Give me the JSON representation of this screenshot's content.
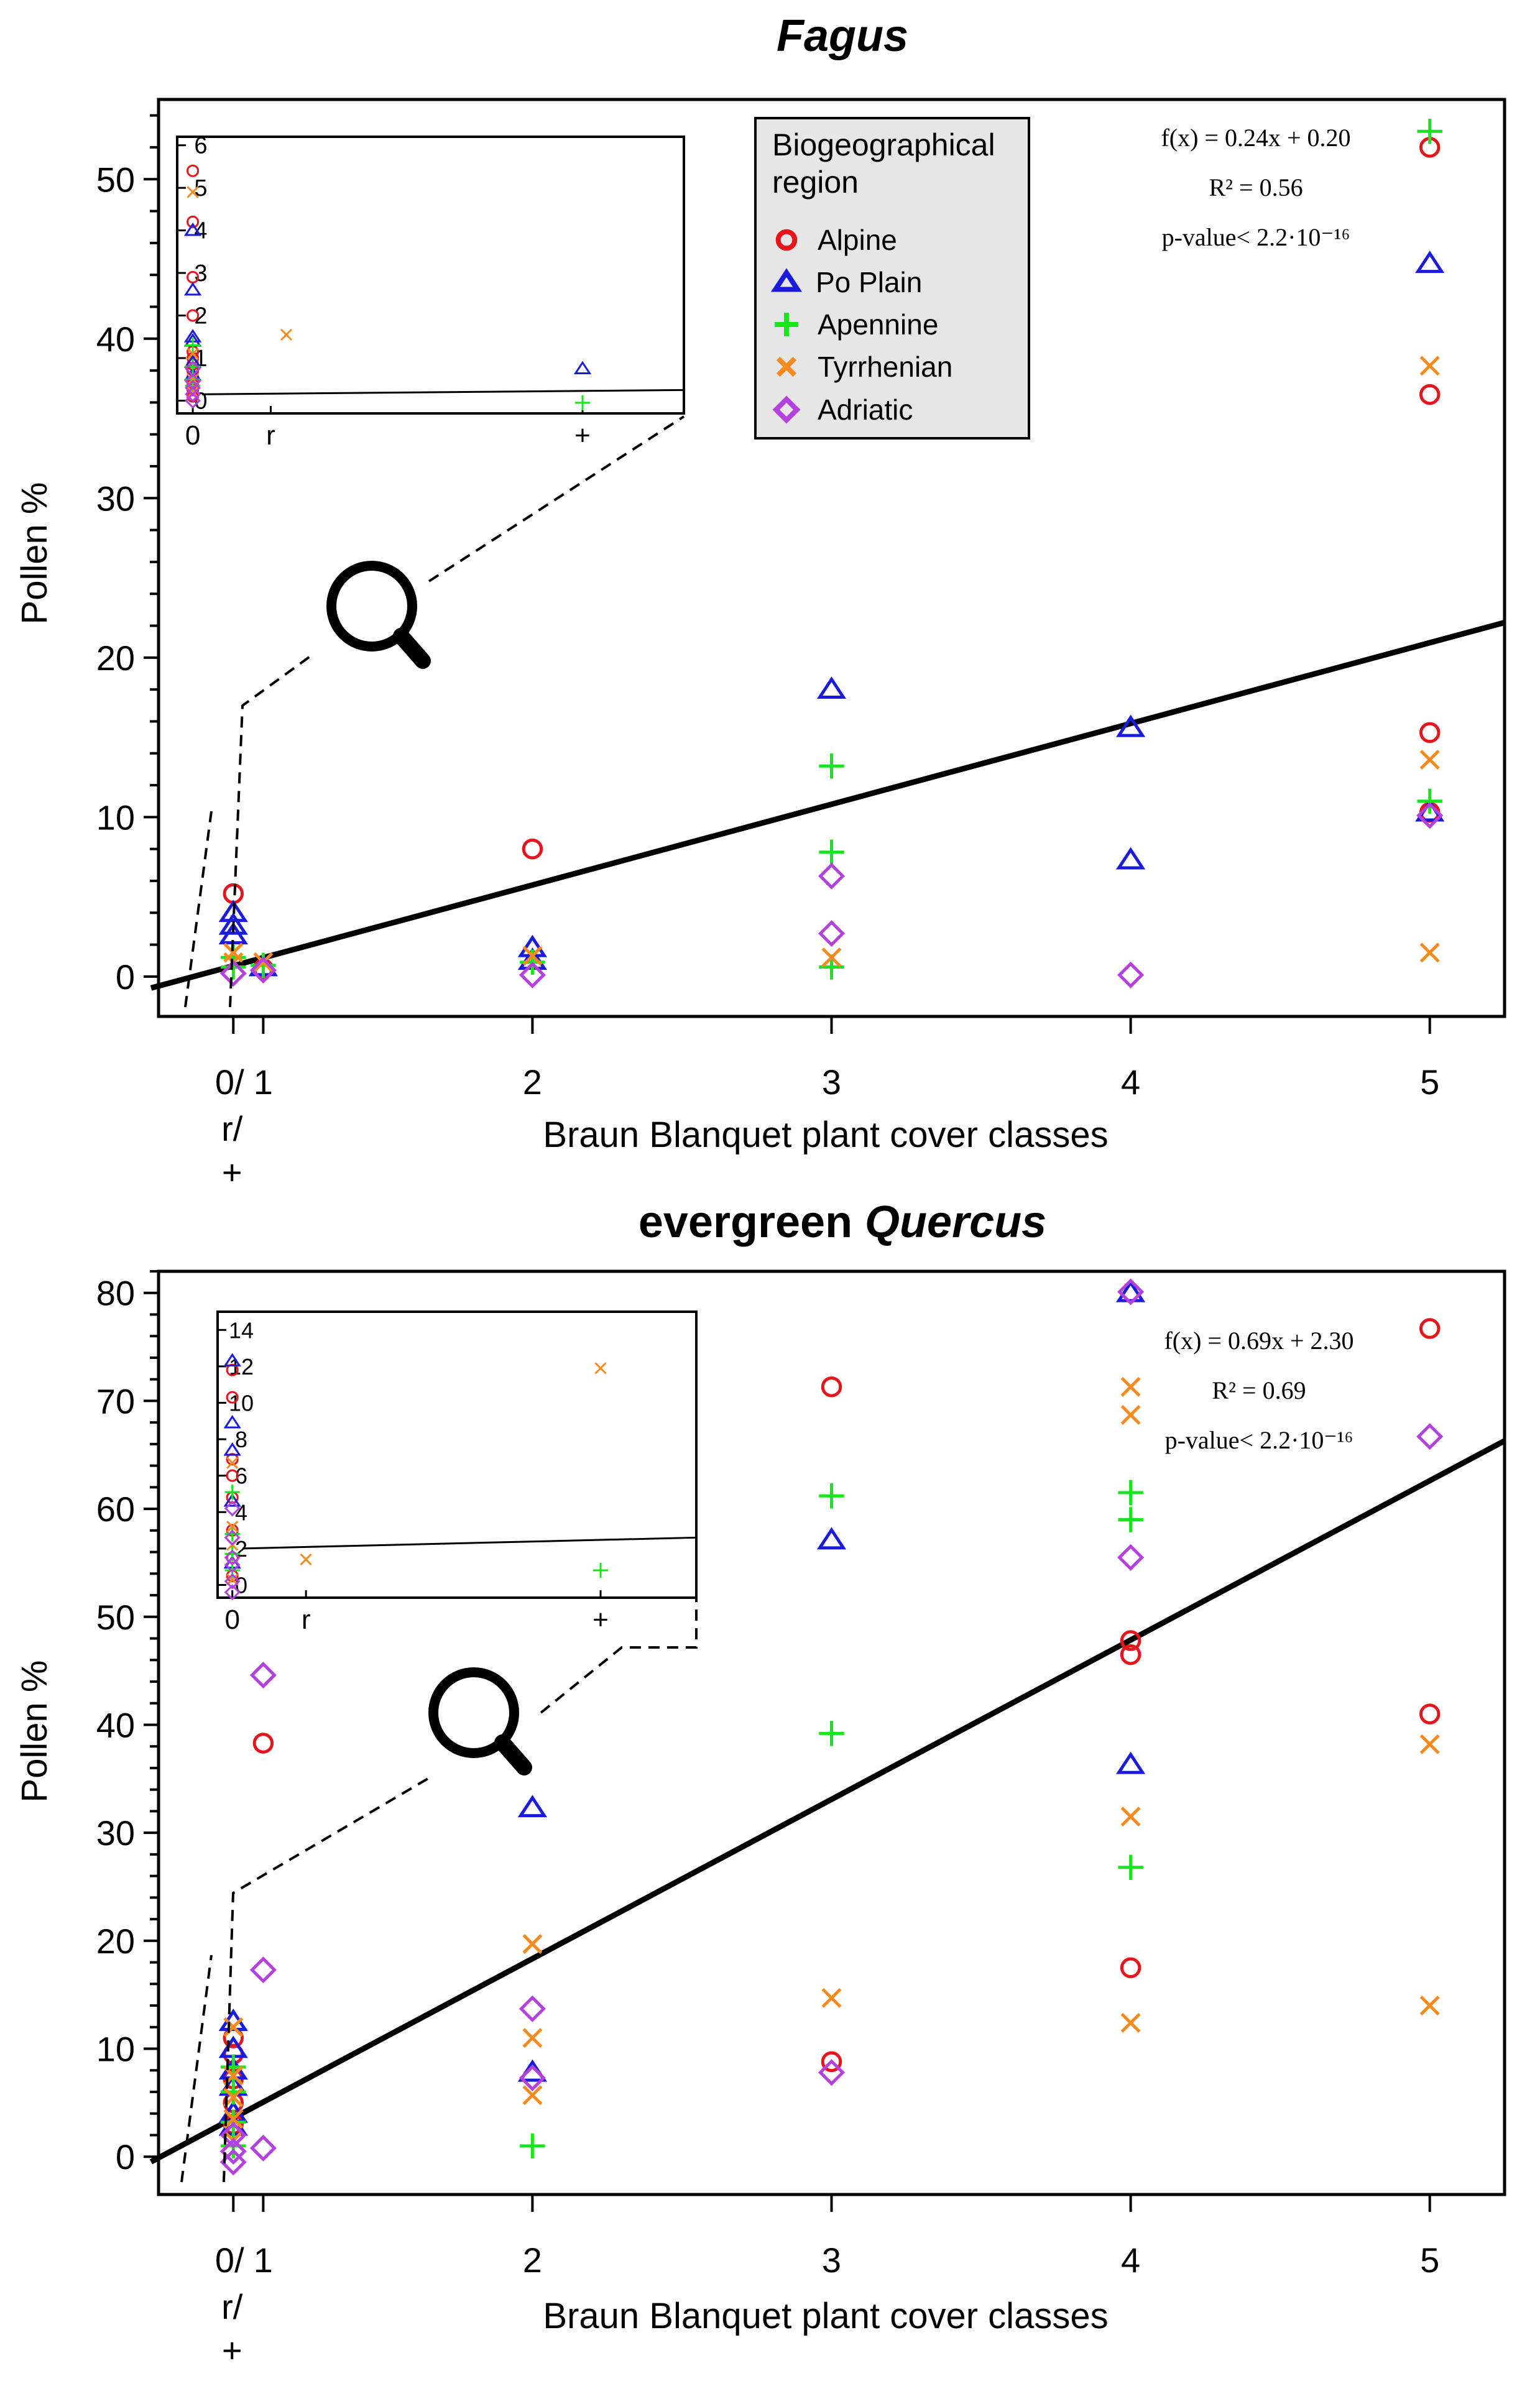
{
  "legend": {
    "title_line1": "Biogeographical",
    "title_line2": "region",
    "entries": [
      {
        "key": "alpine",
        "label": "Alpine",
        "marker": "circle",
        "color": "#e8141c"
      },
      {
        "key": "po",
        "label": "Po Plain",
        "marker": "triangle",
        "color": "#1a1adc"
      },
      {
        "key": "apennine",
        "label": "Apennine",
        "marker": "plus",
        "color": "#17e61c"
      },
      {
        "key": "tyrrhenian",
        "label": "Tyrrhenian",
        "marker": "cross",
        "color": "#f58a1f"
      },
      {
        "key": "adriatic",
        "label": "Adriatic",
        "marker": "diamond",
        "color": "#b440dd"
      }
    ],
    "background": "#e6e6e6"
  },
  "chart_data": [
    {
      "type": "scatter",
      "title": "Fagus",
      "title_prefix": "",
      "title_italic": "Fagus",
      "xlabel": "Braun Blanquet plant cover classes",
      "ylabel": "Pollen %",
      "x_ticks": [
        {
          "value": 0,
          "label": "0/"
        },
        {
          "value": 0.1,
          "label": "1"
        },
        {
          "value": 1,
          "label": "2"
        },
        {
          "value": 2,
          "label": "3"
        },
        {
          "value": 3,
          "label": "4"
        },
        {
          "value": 4,
          "label": "5"
        }
      ],
      "x_sublabels": [
        "r/",
        "+"
      ],
      "xlim": [
        -0.25,
        4.25
      ],
      "ylim": [
        -2.5,
        55
      ],
      "y_ticks": [
        0,
        10,
        20,
        30,
        40,
        50
      ],
      "y_minor_step": 2,
      "regression": {
        "slope": 0.24,
        "intercept": 0.2,
        "x_from": -0.25,
        "x_to": 4.25,
        "y_from": -0.6,
        "y_to": 22.2
      },
      "annotation": {
        "equation": "f(x) = 0.24x + 0.20",
        "r2": "R² = 0.56",
        "pvalue": "p-value< 2.2·10⁻¹⁶"
      },
      "series": {
        "alpine": [
          [
            0,
            5.2
          ],
          [
            0.1,
            0.5
          ],
          [
            1,
            8.0
          ],
          [
            4,
            52
          ],
          [
            4,
            36.5
          ],
          [
            4,
            15.3
          ],
          [
            4,
            10.3
          ]
        ],
        "po": [
          [
            0,
            4.0
          ],
          [
            0,
            3.2
          ],
          [
            0,
            2.6
          ],
          [
            0.1,
            0.6
          ],
          [
            1,
            1.8
          ],
          [
            1,
            1.0
          ],
          [
            2,
            18
          ],
          [
            3,
            15.6
          ],
          [
            3,
            7.3
          ],
          [
            4,
            44.7
          ],
          [
            4,
            10.3
          ]
        ],
        "apennine": [
          [
            0,
            1.2
          ],
          [
            0,
            0.6
          ],
          [
            0.1,
            0.7
          ],
          [
            1,
            0.9
          ],
          [
            2,
            13.2
          ],
          [
            2,
            7.8
          ],
          [
            2,
            0.6
          ],
          [
            4,
            53
          ],
          [
            4,
            11.0
          ]
        ],
        "tyrrhenian": [
          [
            0,
            1.5
          ],
          [
            0,
            0.9
          ],
          [
            0.1,
            0.9
          ],
          [
            1,
            1.3
          ],
          [
            2,
            1.2
          ],
          [
            4,
            38.3
          ],
          [
            4,
            13.6
          ],
          [
            4,
            1.5
          ]
        ],
        "adriatic": [
          [
            0,
            0.2
          ],
          [
            0.1,
            0.4
          ],
          [
            1,
            0.1
          ],
          [
            2,
            6.3
          ],
          [
            2,
            2.7
          ],
          [
            3,
            0.1
          ],
          [
            4,
            10.1
          ]
        ]
      },
      "inset": {
        "x_ticks": [
          {
            "value": 0,
            "label": "0"
          },
          {
            "value": 1,
            "label": "r"
          },
          {
            "value": 5,
            "label": "+"
          }
        ],
        "xlim": [
          -0.2,
          6.3
        ],
        "ylim": [
          -0.3,
          6.2
        ],
        "y_ticks": [
          0,
          1,
          2,
          3,
          4,
          5,
          6
        ],
        "line": {
          "y_from": 0.15,
          "y_to": 0.25
        },
        "series": {
          "alpine": [
            [
              0,
              5.4
            ],
            [
              0,
              4.2
            ],
            [
              0,
              2.9
            ],
            [
              0,
              2.0
            ],
            [
              0,
              1.15
            ],
            [
              0,
              1.0
            ],
            [
              0,
              0.85
            ],
            [
              0,
              0.7
            ],
            [
              0,
              0.55
            ],
            [
              0,
              0.4
            ],
            [
              0,
              0.25
            ],
            [
              0,
              0.1
            ]
          ],
          "po": [
            [
              0,
              4.0
            ],
            [
              0,
              2.6
            ],
            [
              0,
              1.5
            ],
            [
              0,
              1.4
            ],
            [
              0,
              0.9
            ],
            [
              0,
              0.6
            ],
            [
              5,
              0.75
            ]
          ],
          "apennine": [
            [
              0,
              1.3
            ],
            [
              0,
              0.8
            ],
            [
              0,
              0.5
            ],
            [
              0,
              0.35
            ],
            [
              5,
              -0.05
            ]
          ],
          "tyrrhenian": [
            [
              0,
              4.9
            ],
            [
              0,
              1.1
            ],
            [
              0,
              0.5
            ],
            [
              0,
              0.2
            ],
            [
              1.2,
              1.55
            ]
          ],
          "adriatic": [
            [
              0,
              0.75
            ],
            [
              0,
              0.45
            ],
            [
              0,
              0.3
            ],
            [
              0,
              0.15
            ],
            [
              0,
              0.0
            ]
          ]
        }
      }
    },
    {
      "type": "scatter",
      "title": "evergreen Quercus",
      "title_prefix": "evergreen ",
      "title_italic": "Quercus",
      "xlabel": "Braun Blanquet plant cover classes",
      "ylabel": "Pollen %",
      "x_ticks": [
        {
          "value": 0,
          "label": "0/"
        },
        {
          "value": 0.1,
          "label": "1"
        },
        {
          "value": 1,
          "label": "2"
        },
        {
          "value": 2,
          "label": "3"
        },
        {
          "value": 3,
          "label": "4"
        },
        {
          "value": 4,
          "label": "5"
        }
      ],
      "x_sublabels": [
        "r/",
        "+"
      ],
      "xlim": [
        -0.25,
        4.25
      ],
      "ylim": [
        -3.5,
        82
      ],
      "y_ticks": [
        0,
        10,
        20,
        30,
        40,
        50,
        60,
        70,
        80
      ],
      "y_minor_step": 2,
      "regression": {
        "slope": 0.69,
        "intercept": 2.3,
        "x_from": -0.25,
        "x_to": 4.25,
        "y_from": -0.3,
        "y_to": 66.3
      },
      "annotation": {
        "equation": "f(x) = 0.69x + 2.30",
        "r2": "R² = 0.69",
        "pvalue": "p-value< 2.2·10⁻¹⁶"
      },
      "series": {
        "alpine": [
          [
            0,
            11.0
          ],
          [
            0,
            9.5
          ],
          [
            0,
            7.2
          ],
          [
            0,
            5.0
          ],
          [
            0,
            3.0
          ],
          [
            0.1,
            38.3
          ],
          [
            2,
            71.3
          ],
          [
            2,
            8.8
          ],
          [
            3,
            47.8
          ],
          [
            3,
            46.5
          ],
          [
            3,
            17.5
          ],
          [
            4,
            76.7
          ],
          [
            4,
            41.0
          ]
        ],
        "po": [
          [
            0,
            12.5
          ],
          [
            0,
            10.0
          ],
          [
            0,
            8.0
          ],
          [
            0,
            6.5
          ],
          [
            0,
            4.0
          ],
          [
            0,
            2.8
          ],
          [
            1,
            32.3
          ],
          [
            1,
            7.8
          ],
          [
            2,
            57.1
          ],
          [
            3,
            80.0
          ],
          [
            3,
            36.3
          ]
        ],
        "apennine": [
          [
            0,
            8.3
          ],
          [
            0,
            6.0
          ],
          [
            0,
            3.2
          ],
          [
            0,
            1.0
          ],
          [
            1,
            1.0
          ],
          [
            2,
            61.2
          ],
          [
            2,
            39.2
          ],
          [
            3,
            61.5
          ],
          [
            3,
            59.0
          ],
          [
            3,
            26.8
          ]
        ],
        "tyrrhenian": [
          [
            0,
            12.0
          ],
          [
            0,
            7.5
          ],
          [
            0,
            5.5
          ],
          [
            0,
            3.5
          ],
          [
            0,
            1.5
          ],
          [
            1,
            19.7
          ],
          [
            1,
            11.0
          ],
          [
            1,
            5.7
          ],
          [
            2,
            14.7
          ],
          [
            3,
            71.3
          ],
          [
            3,
            68.7
          ],
          [
            3,
            31.5
          ],
          [
            3,
            12.4
          ],
          [
            4,
            38.2
          ],
          [
            4,
            14.0
          ]
        ],
        "adriatic": [
          [
            0,
            2.0
          ],
          [
            0,
            0.5
          ],
          [
            0,
            -0.5
          ],
          [
            0.1,
            44.6
          ],
          [
            0.1,
            17.3
          ],
          [
            0.1,
            0.8
          ],
          [
            1,
            13.7
          ],
          [
            1,
            7.3
          ],
          [
            2,
            7.8
          ],
          [
            3,
            80.1
          ],
          [
            3,
            55.5
          ],
          [
            4,
            66.7
          ]
        ]
      },
      "inset": {
        "x_ticks": [
          {
            "value": 0,
            "label": "0"
          },
          {
            "value": 1,
            "label": "r"
          },
          {
            "value": 5,
            "label": "+"
          }
        ],
        "xlim": [
          -0.2,
          6.3
        ],
        "ylim": [
          -0.7,
          15.0
        ],
        "y_ticks": [
          0,
          2,
          4,
          6,
          8,
          10,
          12,
          14
        ],
        "line": {
          "y_from": 2.0,
          "y_to": 2.6
        },
        "series": {
          "alpine": [
            [
              0,
              11.8
            ],
            [
              0,
              10.3
            ],
            [
              0,
              6.9
            ],
            [
              0,
              6.0
            ],
            [
              0,
              4.8
            ],
            [
              0,
              3.0
            ],
            [
              0,
              1.5
            ],
            [
              0,
              0.5
            ]
          ],
          "po": [
            [
              0,
              12.3
            ],
            [
              0,
              8.9
            ],
            [
              0,
              7.4
            ],
            [
              0,
              4.6
            ],
            [
              0,
              1.2
            ]
          ],
          "apennine": [
            [
              0,
              5.1
            ],
            [
              0,
              2.8
            ],
            [
              0,
              1.7
            ],
            [
              0,
              0.8
            ],
            [
              5,
              0.8
            ]
          ],
          "tyrrhenian": [
            [
              0,
              6.7
            ],
            [
              0,
              3.2
            ],
            [
              0,
              2.2
            ],
            [
              0,
              0.3
            ],
            [
              1,
              1.4
            ],
            [
              5,
              11.9
            ]
          ],
          "adriatic": [
            [
              0,
              4.2
            ],
            [
              0,
              2.6
            ],
            [
              0,
              1.5
            ],
            [
              0,
              1.1
            ],
            [
              0,
              0.2
            ],
            [
              0,
              -0.4
            ]
          ]
        }
      }
    }
  ]
}
